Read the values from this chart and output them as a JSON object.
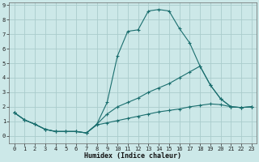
{
  "xlabel": "Humidex (Indice chaleur)",
  "background_color": "#cce8e8",
  "grid_color": "#aacccc",
  "line_color": "#1a6e6e",
  "xlim": [
    -0.5,
    23.5
  ],
  "ylim": [
    -0.5,
    9.2
  ],
  "xticks": [
    0,
    1,
    2,
    3,
    4,
    5,
    6,
    7,
    8,
    9,
    10,
    11,
    12,
    13,
    14,
    15,
    16,
    17,
    18,
    19,
    20,
    21,
    22,
    23
  ],
  "yticks": [
    0,
    1,
    2,
    3,
    4,
    5,
    6,
    7,
    8,
    9
  ],
  "line1_x": [
    0,
    1,
    2,
    3,
    4,
    5,
    6,
    7,
    8,
    9,
    10,
    11,
    12,
    13,
    14,
    15,
    16,
    17,
    18,
    19,
    20,
    21,
    22,
    23
  ],
  "line1_y": [
    1.6,
    1.1,
    0.8,
    0.45,
    0.3,
    0.3,
    0.3,
    0.2,
    0.8,
    2.3,
    5.5,
    7.2,
    7.3,
    8.6,
    8.7,
    8.6,
    7.4,
    6.4,
    4.8,
    3.5,
    2.55,
    2.0,
    1.95,
    2.0
  ],
  "line2_x": [
    0,
    1,
    2,
    3,
    4,
    5,
    6,
    7,
    8,
    9,
    10,
    11,
    12,
    13,
    14,
    15,
    16,
    17,
    18,
    19,
    20,
    21,
    22,
    23
  ],
  "line2_y": [
    1.6,
    1.1,
    0.8,
    0.45,
    0.3,
    0.3,
    0.3,
    0.2,
    0.8,
    1.5,
    2.0,
    2.3,
    2.6,
    3.0,
    3.3,
    3.6,
    4.0,
    4.4,
    4.8,
    3.5,
    2.55,
    2.0,
    1.95,
    2.0
  ],
  "line3_x": [
    0,
    1,
    2,
    3,
    4,
    5,
    6,
    7,
    8,
    9,
    10,
    11,
    12,
    13,
    14,
    15,
    16,
    17,
    18,
    19,
    20,
    21,
    22,
    23
  ],
  "line3_y": [
    1.6,
    1.1,
    0.8,
    0.45,
    0.3,
    0.3,
    0.3,
    0.2,
    0.75,
    0.9,
    1.05,
    1.2,
    1.35,
    1.5,
    1.65,
    1.75,
    1.85,
    2.0,
    2.1,
    2.2,
    2.15,
    2.0,
    1.95,
    2.0
  ]
}
